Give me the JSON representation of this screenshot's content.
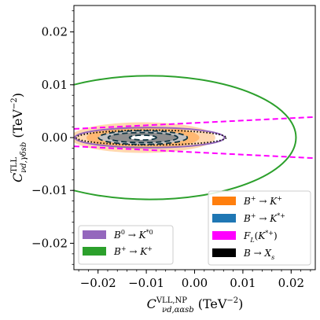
{
  "chart_data": {
    "type": "contour",
    "xlabel": "C^{VLL,NP}_{νd,ααsb} (TeV⁻²)",
    "xlabel_main": "C",
    "xlabel_sup": "VLL,NP",
    "xlabel_sub": "νd,ααsb",
    "xlabel_unit": "(TeV",
    "xlabel_unit_exp": "−2",
    "xlabel_unit_close": ")",
    "ylabel": "C^{TLL}_{νd,γδsb} (TeV⁻²)",
    "ylabel_main": "C",
    "ylabel_sup": "TLL",
    "ylabel_sub": "νd,γδsb",
    "ylabel_unit": "(TeV",
    "ylabel_unit_exp": "−2",
    "ylabel_unit_close": ")",
    "xlim": [
      -0.025,
      0.025
    ],
    "ylim": [
      -0.025,
      0.025
    ],
    "x_ticks": [
      -0.02,
      -0.01,
      0.0,
      0.01,
      0.02
    ],
    "x_tick_labels": [
      "−0.02",
      "−0.01",
      "0.00",
      "0.01",
      "0.02"
    ],
    "y_ticks": [
      -0.02,
      -0.01,
      0.0,
      0.01,
      0.02
    ],
    "y_tick_labels": [
      "−0.02",
      "−0.01",
      "0.00",
      "0.01",
      "0.02"
    ],
    "grid": false,
    "colors": {
      "orange_outer": "#ffd8b0",
      "orange_inner": "#ffb872",
      "gray_outer": "#c2c2c2",
      "gray_inner": "#8f8f8f",
      "purple": "#9467bd",
      "green": "#2ca02c",
      "orange": "#ff7f0e",
      "blue": "#1f77b4",
      "magenta": "#ff00ff",
      "black": "#000000",
      "dark_dashed": "#0e3340"
    },
    "regions": [
      {
        "name": "B+ → K+ outer band",
        "color": "#ffd8b0",
        "center": [
          -0.0107,
          0.0
        ],
        "rx": 0.015,
        "ry": 0.0029
      },
      {
        "name": "B+ → K+ inner band",
        "color": "#ffb872",
        "center": [
          -0.0107,
          0.0
        ],
        "rx": 0.0117,
        "ry": 0.0021
      },
      {
        "name": "combined outer",
        "color": "#c2c2c2",
        "center": [
          -0.0107,
          0.0
        ],
        "rx": 0.0092,
        "ry": 0.0013
      },
      {
        "name": "combined inner",
        "color": "#8f8f8f",
        "center": [
          -0.0107,
          0.0
        ],
        "rx": 0.0072,
        "ry": 0.00095
      },
      {
        "name": "center gap",
        "color": "#ffffff",
        "center": [
          -0.0107,
          0.0
        ],
        "rx": 0.0028,
        "ry": 0.00045
      }
    ],
    "contours": [
      {
        "name": "B+ → K+ (green)",
        "color": "#2ca02c",
        "style": "solid",
        "center": [
          -0.0093,
          0.0
        ],
        "rx": 0.0303,
        "ry": 0.0117
      },
      {
        "name": "B0 → K*0 (purple)",
        "color": "#9467bd",
        "style": "solid",
        "center": [
          -0.0093,
          0.0
        ],
        "rx": 0.0155,
        "ry": 0.0019
      },
      {
        "name": "B → Xs",
        "color": "#000000",
        "style": "dotted",
        "center": [
          -0.009,
          0.0
        ],
        "rx": 0.0155,
        "ry": 0.0014
      },
      {
        "name": "combined 1",
        "color": "#0e3340",
        "style": "dashed",
        "center": [
          -0.0107,
          0.0
        ],
        "rx": 0.0092,
        "ry": 0.0013
      },
      {
        "name": "combined 2",
        "color": "#0e3340",
        "style": "dashed",
        "center": [
          -0.0107,
          0.0
        ],
        "rx": 0.0072,
        "ry": 0.00095
      },
      {
        "name": "combined 3",
        "color": "#0e3340",
        "style": "dashed",
        "center": [
          -0.0107,
          0.0
        ],
        "rx": 0.0028,
        "ry": 0.00045
      }
    ],
    "lines": [
      {
        "name": "F_L(K*+) upper",
        "color": "#ff00ff",
        "style": "dashed",
        "points": [
          [
            -0.025,
            0.00165
          ],
          [
            0.025,
            0.0039
          ]
        ]
      },
      {
        "name": "F_L(K*+) lower",
        "color": "#ff00ff",
        "style": "dashed",
        "points": [
          [
            -0.025,
            -0.00165
          ],
          [
            0.025,
            -0.0039
          ]
        ]
      }
    ],
    "legend_left": {
      "placement": "lower-left",
      "entries": [
        {
          "text": "B⁰ → K*⁰",
          "main": "B",
          "sup": "0",
          "arrow": " → ",
          "k": "K",
          "ksup": "*0",
          "color": "#9467bd"
        },
        {
          "text": "B⁺ → K⁺",
          "main": "B",
          "sup": "+",
          "arrow": " → ",
          "k": "K",
          "ksup": "+",
          "color": "#2ca02c"
        }
      ]
    },
    "legend_right": {
      "placement": "lower-right",
      "entries": [
        {
          "text": "B⁺ → K⁺",
          "main": "B",
          "sup": "+",
          "arrow": " → ",
          "k": "K",
          "ksup": "+",
          "color": "#ff7f0e"
        },
        {
          "text": "B⁺ → K*⁺",
          "main": "B",
          "sup": "+",
          "arrow": " → ",
          "k": "K",
          "ksup": "*+",
          "color": "#1f77b4"
        },
        {
          "text": "F_L(K*⁺)",
          "main": "F",
          "sub": "L",
          "rest": "(K",
          "rsup": "*+",
          "rclose": ")",
          "color": "#ff00ff"
        },
        {
          "text": "B → X_s",
          "main": "B",
          "arrow": " → ",
          "x": "X",
          "xsub": "s",
          "color": "#000000"
        }
      ]
    }
  }
}
